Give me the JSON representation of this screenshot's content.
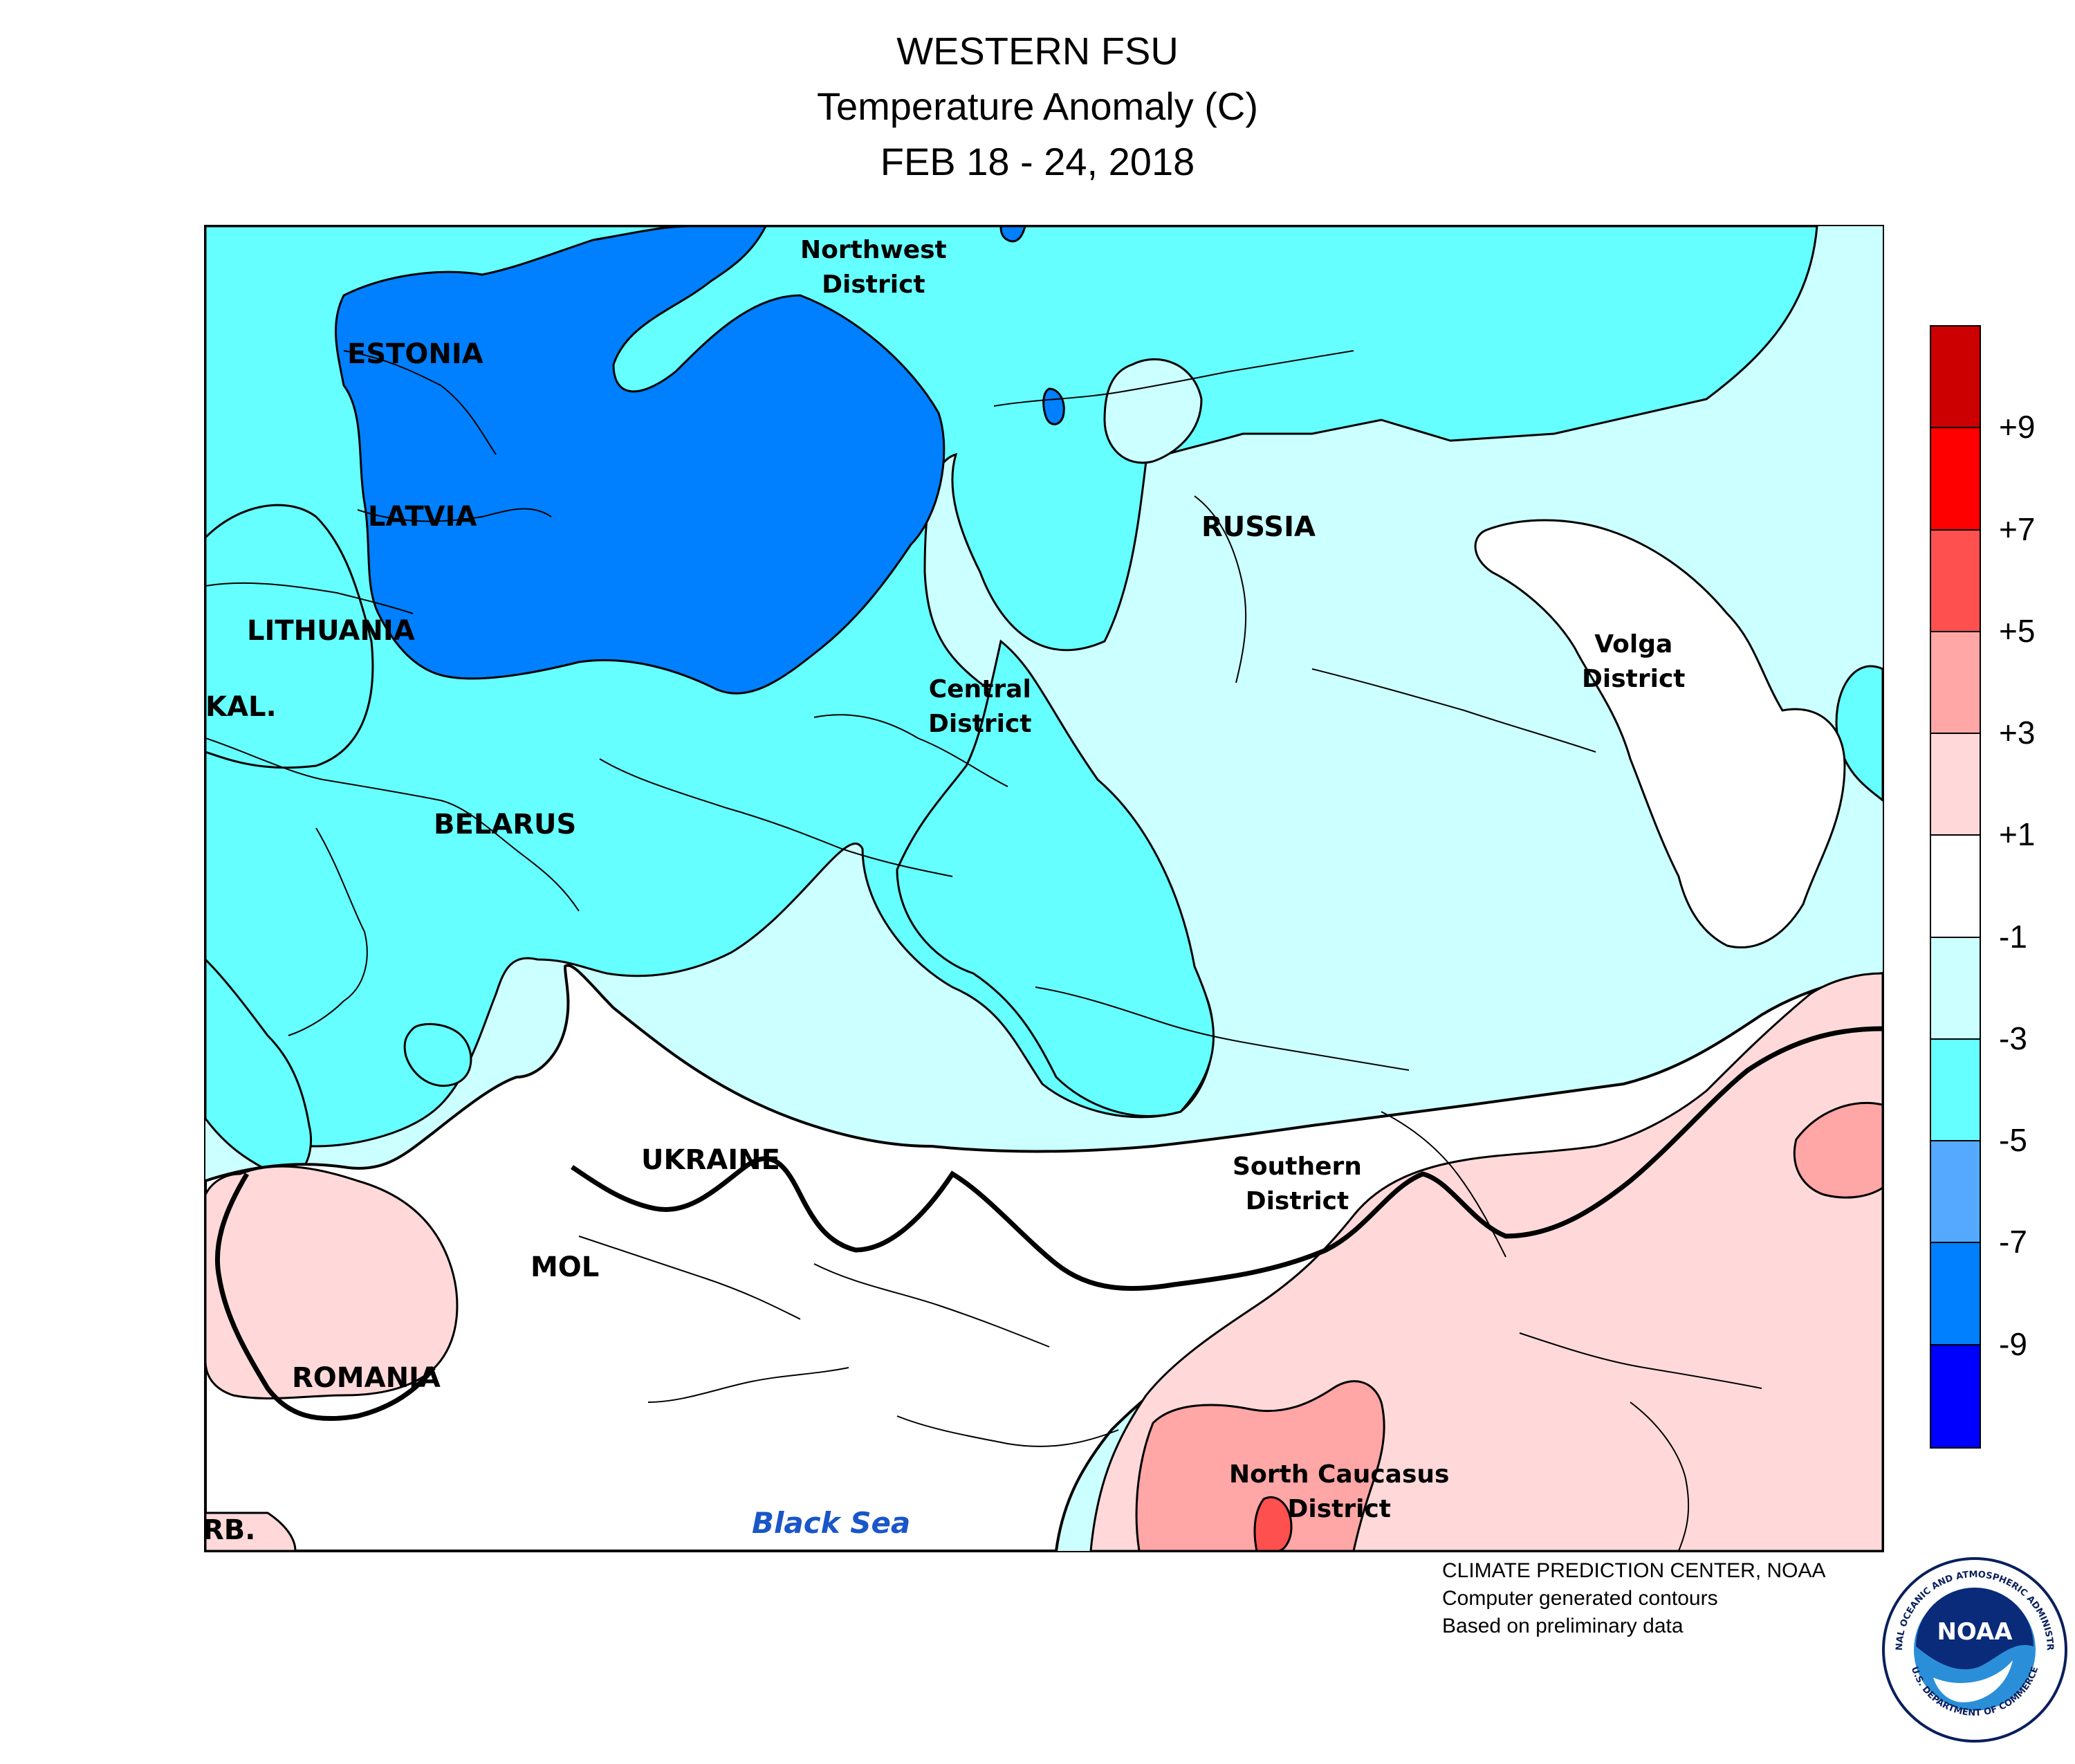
{
  "title": {
    "line1": "WESTERN FSU",
    "line2": "Temperature Anomaly (C)",
    "line3": "FEB 18 - 24, 2018"
  },
  "map": {
    "labels": {
      "northwest": [
        "Northwest",
        "District"
      ],
      "estonia": "ESTONIA",
      "latvia": "LATVIA",
      "lithuania": "LITHUANIA",
      "kaliningrad": "KAL.",
      "belarus": "BELARUS",
      "russia": "RUSSIA",
      "central": [
        "Central",
        "District"
      ],
      "volga": [
        "Volga",
        "District"
      ],
      "ukraine": "UKRAINE",
      "moldova": "MOL",
      "romania": "ROMANIA",
      "serbia": "RB.",
      "southern": [
        "Southern",
        "District"
      ],
      "north_caucasus": [
        "North Caucasus",
        "District"
      ],
      "black_sea": "Black Sea"
    },
    "colors": {
      "land_background": "#ffffff",
      "border_line": "#000000"
    }
  },
  "legend": {
    "colors": [
      "#cc0000",
      "#ff0000",
      "#ff5050",
      "#ffa6a6",
      "#ffd9d9",
      "#ffffff",
      "#ccffff",
      "#66ffff",
      "#55aaff",
      "#0080ff",
      "#0000ff"
    ],
    "ticks": [
      "+9",
      "+7",
      "+5",
      "+3",
      "+1",
      "-1",
      "-3",
      "-5",
      "-7",
      "-9"
    ]
  },
  "credits": {
    "line1": "CLIMATE PREDICTION CENTER, NOAA",
    "line2": "Computer generated contours",
    "line3": "Based on preliminary data"
  },
  "logo": {
    "center_text": "NOAA",
    "ring_top": "NATIONAL OCEANIC AND ATMOSPHERIC ADMINISTRATION",
    "ring_bottom": "U.S. DEPARTMENT OF COMMERCE",
    "icon": "noaa-logo"
  }
}
